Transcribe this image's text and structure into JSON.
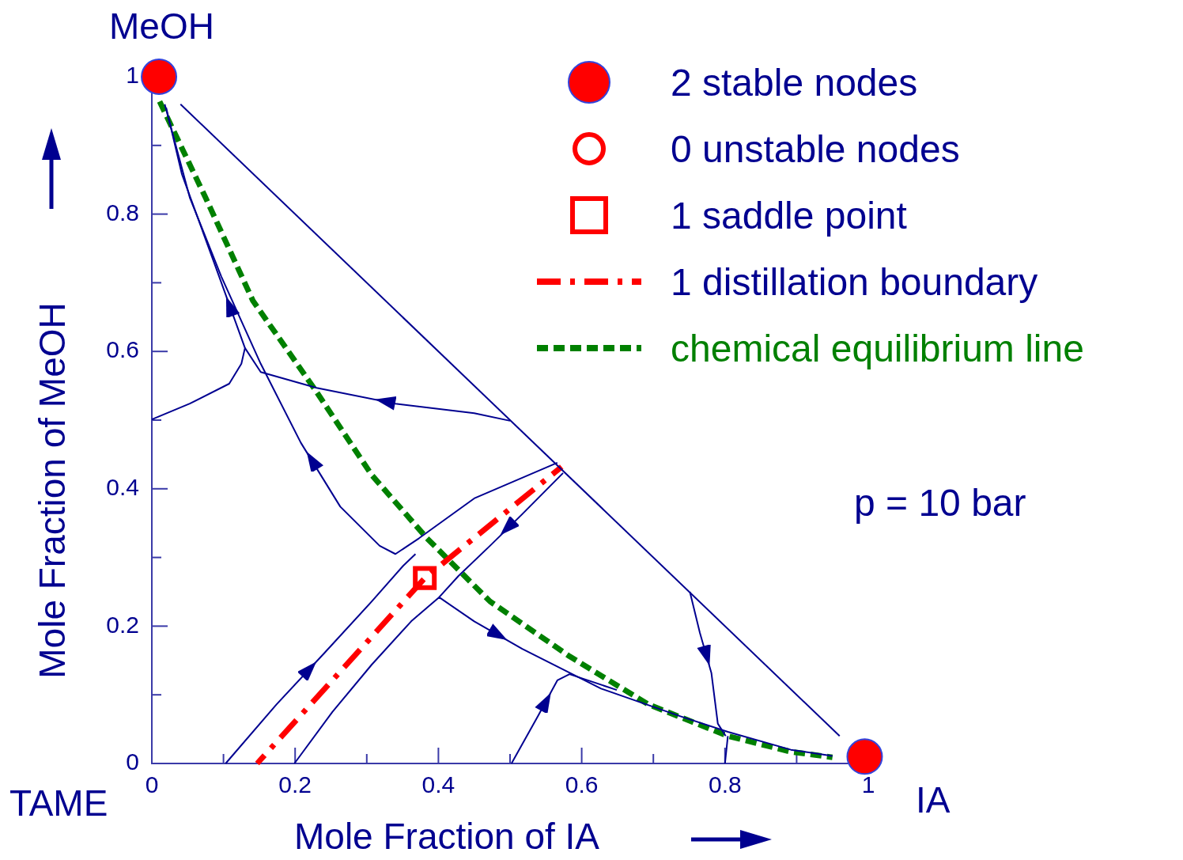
{
  "chart_data": {
    "type": "line",
    "xlabel": "Mole Fraction of IA",
    "ylabel": "Mole Fraction of MeOH",
    "xlim": [
      0,
      1
    ],
    "ylim": [
      0,
      1
    ],
    "xticks": [
      0,
      {
        "value": 0.1,
        "label": null
      },
      0.2,
      {
        "value": 0.3,
        "label": null
      },
      0.4,
      {
        "value": 0.5,
        "label": null
      },
      0.6,
      {
        "value": 0.7,
        "label": null
      },
      0.8,
      {
        "value": 0.9,
        "label": null
      },
      {
        "value": 1,
        "label": "1"
      }
    ],
    "yticks": [
      0,
      {
        "value": 0.1,
        "label": null
      },
      0.2,
      {
        "value": 0.3,
        "label": null
      },
      0.4,
      {
        "value": 0.5,
        "label": null
      },
      0.6,
      {
        "value": 0.7,
        "label": null
      },
      0.8,
      {
        "value": 0.9,
        "label": null
      },
      {
        "value": 1,
        "label": "1"
      }
    ],
    "grid": false,
    "legend": "top right",
    "marker": "none",
    "line_style": "solid",
    "annotations": [
      "MeOH",
      "TAME",
      "IA",
      "p = 10 bar"
    ],
    "series": [
      {
        "color": "#000090",
        "x": [
          0.04,
          0.96
        ],
        "values": [
          0.96,
          0.04
        ]
      },
      {
        "color": "#000090",
        "x": [
          0.566,
          0.45,
          0.373,
          0.34,
          0.318,
          0.263,
          0.208,
          0.152,
          0.097,
          0.053,
          0.018
        ],
        "values": [
          0.438,
          0.386,
          0.328,
          0.305,
          0.317,
          0.374,
          0.467,
          0.582,
          0.709,
          0.824,
          0.96
        ]
      },
      {
        "color": "#000090",
        "x": [
          0,
          0.053,
          0.108,
          0.125,
          0.13,
          0.086,
          0.042,
          0.02
        ],
        "values": [
          0.501,
          0.524,
          0.553,
          0.582,
          0.605,
          0.732,
          0.858,
          0.955
        ]
      },
      {
        "color": "#000090",
        "x": [
          0.5,
          0.45,
          0.34,
          0.23,
          0.152,
          0.13
        ],
        "values": [
          0.499,
          0.51,
          0.524,
          0.547,
          0.57,
          0.605
        ]
      },
      {
        "color": "#000090",
        "x": [
          0.103,
          0.174,
          0.241,
          0.307,
          0.351,
          0.368
        ],
        "values": [
          0,
          0.086,
          0.161,
          0.236,
          0.288,
          0.305
        ]
      },
      {
        "color": "#000090",
        "x": [
          0.199,
          0.252,
          0.307,
          0.362,
          0.401,
          0.45,
          0.517,
          0.627,
          0.737,
          0.804,
          0.892,
          0.95
        ],
        "values": [
          0,
          0.075,
          0.144,
          0.207,
          0.242,
          0.207,
          0.167,
          0.109,
          0.069,
          0.046,
          0.02,
          0.011
        ]
      },
      {
        "color": "#000090",
        "x": [
          0.574,
          0.517,
          0.472,
          0.428,
          0.401
        ],
        "values": [
          0.423,
          0.363,
          0.317,
          0.273,
          0.242
        ]
      },
      {
        "color": "#000090",
        "x": [
          0.502,
          0.539,
          0.566,
          0.583,
          0.649
        ],
        "values": [
          0,
          0.069,
          0.121,
          0.13,
          0.107
        ]
      },
      {
        "color": "#000090",
        "x": [
          0.751,
          0.765,
          0.781,
          0.79,
          0.801
        ],
        "values": [
          0.25,
          0.19,
          0.132,
          0.058,
          0.04
        ]
      },
      {
        "color": "#000090",
        "x": [
          0.8,
          0.804
        ],
        "values": [
          0,
          0.04
        ]
      },
      {
        "name": "1 distillation boundary",
        "color": "#ff0000",
        "line_style": "dashed",
        "x": [
          0.147,
          0.381,
          0.572
        ],
        "values": [
          0,
          0.27,
          0.432
        ]
      },
      {
        "name": "chemical equilibrium line",
        "color": "#008000",
        "line_style": "dotted",
        "x": [
          0.009,
          0.075,
          0.141,
          0.23,
          0.307,
          0.384,
          0.472,
          0.583,
          0.693,
          0.804,
          0.892,
          0.95
        ],
        "values": [
          0.968,
          0.824,
          0.674,
          0.541,
          0.42,
          0.328,
          0.236,
          0.156,
          0.086,
          0.04,
          0.017,
          0.009
        ]
      },
      {
        "type": "scatter",
        "name": "2 stable nodes",
        "color": "#ff0000",
        "marker": "circle",
        "x": [
          0.01,
          0.995
        ],
        "values": [
          1,
          0.01
        ]
      },
      {
        "type": "scatter",
        "name": "0 unstable nodes",
        "color": "#ff0000",
        "marker": "circle"
      },
      {
        "type": "scatter",
        "name": "1 saddle point",
        "color": "#ff0000",
        "marker": "square",
        "x": [
          0.381
        ],
        "values": [
          0.27
        ]
      }
    ]
  }
}
